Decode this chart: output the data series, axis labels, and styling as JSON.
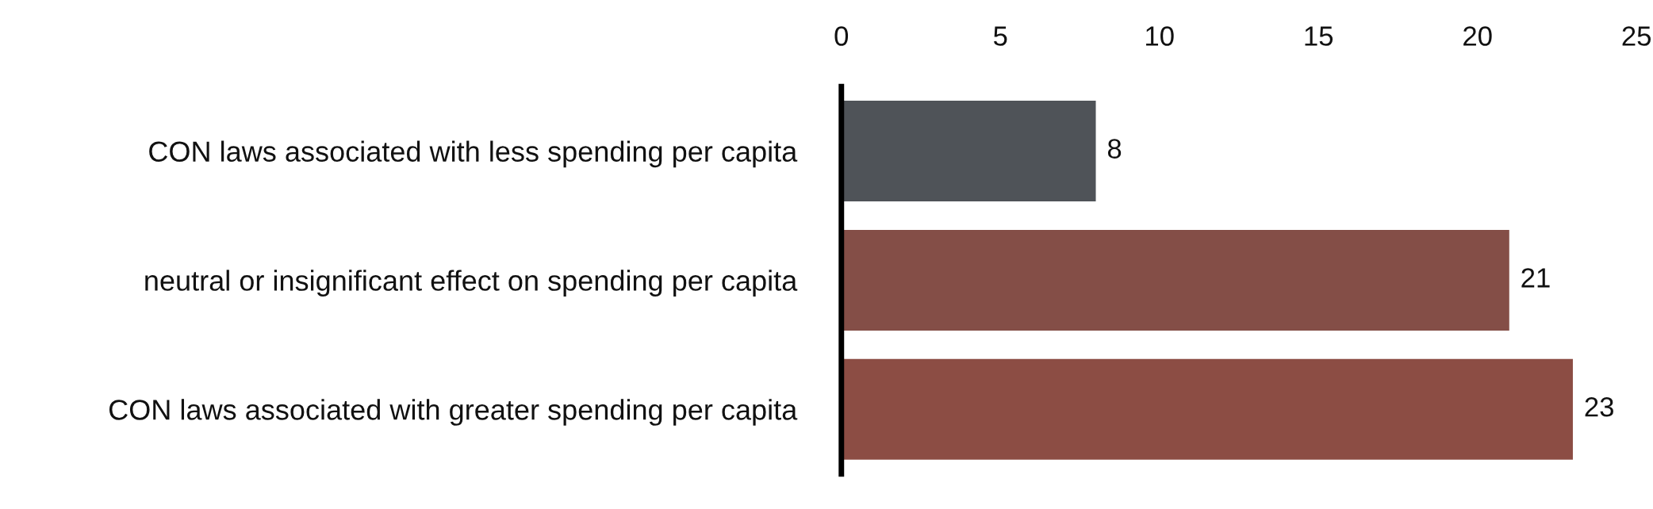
{
  "chart_data": {
    "type": "bar",
    "orientation": "horizontal",
    "categories": [
      "CON laws associated with less spending per capita",
      "neutral or insignificant effect on spending per capita",
      "CON laws associated with greater spending per capita"
    ],
    "values": [
      8,
      21,
      23
    ],
    "colors": [
      "#4f5358",
      "#844e47",
      "#8c4d44"
    ],
    "xlim": [
      0,
      25
    ],
    "xticks": [
      0,
      5,
      10,
      15,
      20,
      25
    ],
    "data_labels": true,
    "grid": false
  }
}
